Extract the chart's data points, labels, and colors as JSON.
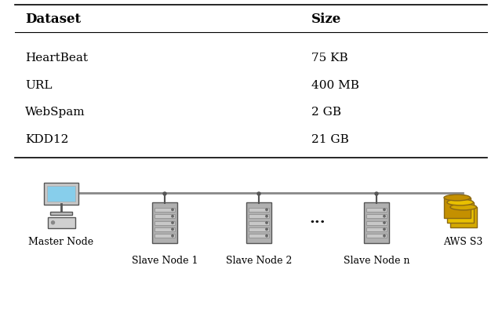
{
  "table_headers": [
    "Dataset",
    "Size"
  ],
  "table_rows": [
    [
      "HeartBeat",
      "75 KB"
    ],
    [
      "URL",
      "400 MB"
    ],
    [
      "WebSpam",
      "2 GB"
    ],
    [
      "KDD12",
      "21 GB"
    ]
  ],
  "bg_color": "#ffffff",
  "text_color": "#000000",
  "header_fontsize": 12,
  "body_fontsize": 11,
  "diagram_labels": {
    "master": "Master Node",
    "slaves": [
      "Slave Node 1",
      "Slave Node 2",
      "Slave Node n"
    ],
    "storage": "AWS S3",
    "dots": "..."
  }
}
